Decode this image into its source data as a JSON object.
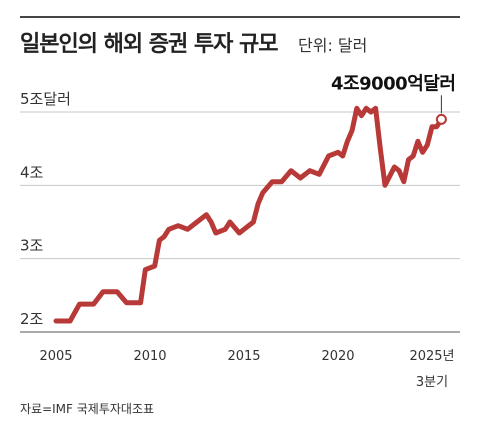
{
  "header": {
    "title": "일본인의 해외 증권 투자 규모",
    "unit": "단위: 달러"
  },
  "footer": {
    "source": "자료=IMF 국제투자대조표"
  },
  "chart_data": {
    "type": "line",
    "title": "일본인의 해외 증권 투자 규모",
    "unit_label": "단위: 달러",
    "ylim": [
      2,
      5
    ],
    "xlim": [
      2005,
      2025.5
    ],
    "yticks": [
      {
        "value": 2,
        "label": "2조"
      },
      {
        "value": 3,
        "label": "3조"
      },
      {
        "value": 4,
        "label": "4조"
      },
      {
        "value": 5,
        "label": "5조달러"
      }
    ],
    "xticks": [
      {
        "value": 2005,
        "label": "2005"
      },
      {
        "value": 2010,
        "label": "2010"
      },
      {
        "value": 2015,
        "label": "2015"
      },
      {
        "value": 2020,
        "label": "2020"
      },
      {
        "value": 2025,
        "label": "2025년"
      }
    ],
    "xtick_sublabel": "3분기",
    "grid": true,
    "line_color": "#b83a38",
    "annotation": {
      "text": "4조9000억달러",
      "x": 2025.5,
      "y": 4.9
    },
    "series": [
      {
        "x": [
          2005,
          2005.75,
          2006.25,
          2007,
          2007.5,
          2008.25,
          2008.75,
          2009.5,
          2009.75,
          2010.25,
          2010.5,
          2010.75,
          2011,
          2011.5,
          2012,
          2012.5,
          2013,
          2013.25,
          2013.5,
          2014,
          2014.25,
          2014.75,
          2015,
          2015.5,
          2015.75,
          2016,
          2016.5,
          2017,
          2017.5,
          2018,
          2018.5,
          2019,
          2019.5,
          2020,
          2020.25,
          2020.5,
          2020.75,
          2021,
          2021.25,
          2021.5,
          2021.75,
          2022,
          2022.25,
          2022.5,
          2023,
          2023.25,
          2023.5,
          2023.75,
          2024,
          2024.25,
          2024.5,
          2024.75,
          2025,
          2025.25,
          2025.5
        ],
        "y": [
          2.15,
          2.15,
          2.38,
          2.38,
          2.55,
          2.55,
          2.4,
          2.4,
          2.85,
          2.9,
          3.25,
          3.3,
          3.4,
          3.45,
          3.4,
          3.5,
          3.6,
          3.5,
          3.35,
          3.4,
          3.5,
          3.35,
          3.4,
          3.5,
          3.75,
          3.9,
          4.05,
          4.05,
          4.2,
          4.1,
          4.2,
          4.15,
          4.4,
          4.45,
          4.4,
          4.6,
          4.75,
          5.05,
          4.95,
          5.05,
          5.0,
          5.05,
          4.5,
          4.0,
          4.25,
          4.2,
          4.05,
          4.35,
          4.4,
          4.6,
          4.45,
          4.55,
          4.8,
          4.8,
          4.9
        ]
      }
    ]
  }
}
